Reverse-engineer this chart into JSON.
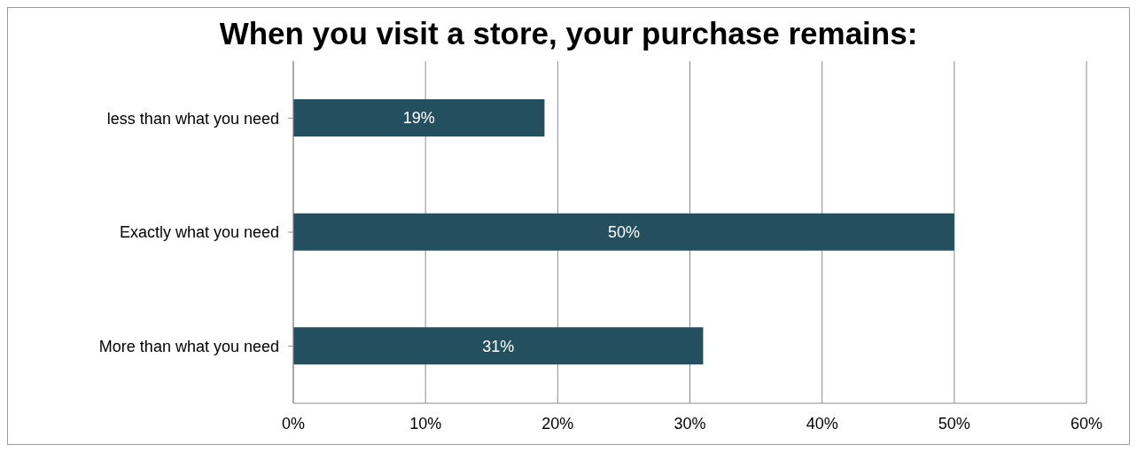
{
  "chart_data": {
    "type": "bar",
    "orientation": "horizontal",
    "title": "When you visit a store, your purchase remains:",
    "categories": [
      "less than what you need",
      "Exactly what you need",
      "More than what you need"
    ],
    "values": [
      19,
      50,
      31
    ],
    "value_labels": [
      "19%",
      "50%",
      "31%"
    ],
    "color": "#244f5e",
    "xlim": [
      0,
      60
    ],
    "xticks": [
      {
        "value": 0,
        "label": "0%"
      },
      {
        "value": 10,
        "label": "10%"
      },
      {
        "value": 20,
        "label": "20%"
      },
      {
        "value": 30,
        "label": "30%"
      },
      {
        "value": 40,
        "label": "40%"
      },
      {
        "value": 50,
        "label": "50%"
      },
      {
        "value": 60,
        "label": "60%"
      }
    ],
    "grid": "x",
    "legend": false
  }
}
